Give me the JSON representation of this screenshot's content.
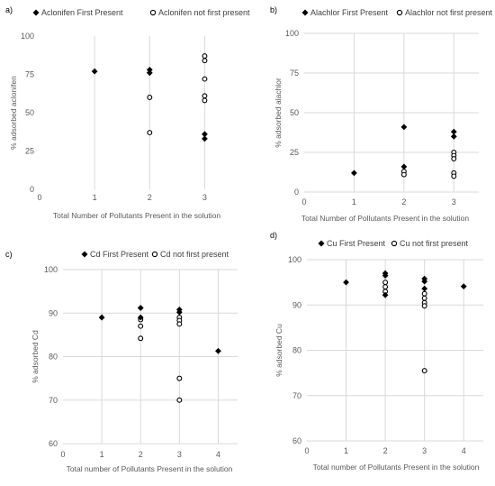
{
  "chart_data": [
    {
      "panel": "a)",
      "type": "scatter",
      "xlabel": "Total Number of Pollutants Present in the solution",
      "ylabel": "% adsorbed aclonifen",
      "xlim": [
        0,
        3.5
      ],
      "ylim": [
        0,
        100
      ],
      "xticks": [
        0,
        1,
        2,
        3
      ],
      "yticks": [
        0,
        25,
        50,
        75,
        100
      ],
      "grid": "vertical",
      "legend": "top-left",
      "series": [
        {
          "name": "Aclonifen First Present",
          "marker": "filled-diamond",
          "points": [
            [
              1,
              77
            ],
            [
              2,
              78
            ],
            [
              2,
              76
            ],
            [
              3,
              36
            ],
            [
              3,
              33
            ]
          ]
        },
        {
          "name": "Aclonifen not first present",
          "marker": "open-circle",
          "points": [
            [
              2,
              60
            ],
            [
              2,
              37
            ],
            [
              3,
              87
            ],
            [
              3,
              84
            ],
            [
              3,
              72
            ],
            [
              3,
              61
            ],
            [
              3,
              58
            ]
          ]
        }
      ]
    },
    {
      "panel": "b)",
      "type": "scatter",
      "xlabel": "Total Number of Pollutants Present in the solution",
      "ylabel": "% adsorbed alachlor",
      "xlim": [
        0,
        3.5
      ],
      "ylim": [
        0,
        100
      ],
      "xticks": [
        0,
        1,
        2,
        3
      ],
      "yticks": [
        0,
        25,
        50,
        75,
        100
      ],
      "grid": "horizontal-and-vertical",
      "legend": "top",
      "series": [
        {
          "name": "Alachlor First Present",
          "marker": "filled-diamond",
          "points": [
            [
              1,
              12
            ],
            [
              2,
              41
            ],
            [
              2,
              16
            ],
            [
              3,
              38
            ],
            [
              3,
              35
            ]
          ]
        },
        {
          "name": "Alachlor not first present",
          "marker": "open-circle",
          "points": [
            [
              2,
              13
            ],
            [
              2,
              11
            ],
            [
              3,
              25
            ],
            [
              3,
              23
            ],
            [
              3,
              21
            ],
            [
              3,
              12
            ],
            [
              3,
              10
            ]
          ]
        }
      ]
    },
    {
      "panel": "c)",
      "type": "scatter",
      "xlabel": "Total number of Pollutants Present in the solution",
      "ylabel": "% adsorbed Cd",
      "xlim": [
        0,
        4.5
      ],
      "ylim": [
        60,
        100
      ],
      "xticks": [
        0,
        1,
        2,
        3,
        4
      ],
      "yticks": [
        60,
        70,
        80,
        90,
        100
      ],
      "grid": "horizontal-and-vertical",
      "legend": "top",
      "series": [
        {
          "name": "Cd First Present",
          "marker": "filled-diamond",
          "points": [
            [
              1,
              89
            ],
            [
              2,
              91.2
            ],
            [
              2,
              89
            ],
            [
              3,
              90.8
            ],
            [
              3,
              90.2
            ],
            [
              4,
              81.3
            ]
          ]
        },
        {
          "name": "Cd not first present",
          "marker": "open-circle",
          "points": [
            [
              2,
              88.5
            ],
            [
              2,
              87
            ],
            [
              2,
              84.2
            ],
            [
              3,
              89
            ],
            [
              3,
              88.3
            ],
            [
              3,
              87.5
            ],
            [
              3,
              75
            ],
            [
              3,
              70
            ]
          ]
        }
      ]
    },
    {
      "panel": "d)",
      "type": "scatter",
      "xlabel": "Total number of Pollutants Present in the solution",
      "ylabel": "% adsorbed Cu",
      "xlim": [
        0,
        4.5
      ],
      "ylim": [
        60,
        100
      ],
      "xticks": [
        0,
        1,
        2,
        3,
        4
      ],
      "yticks": [
        60,
        70,
        80,
        90,
        100
      ],
      "grid": "horizontal-and-vertical",
      "legend": "top",
      "series": [
        {
          "name": "Cu First Present",
          "marker": "filled-diamond",
          "points": [
            [
              1,
              95
            ],
            [
              2,
              97
            ],
            [
              2,
              96.5
            ],
            [
              2,
              92.2
            ],
            [
              3,
              95.8
            ],
            [
              3,
              95.2
            ],
            [
              3,
              93.6
            ],
            [
              4,
              94.1
            ]
          ]
        },
        {
          "name": "Cu not first present",
          "marker": "open-circle",
          "points": [
            [
              2,
              95
            ],
            [
              2,
              94
            ],
            [
              2,
              93
            ],
            [
              3,
              92.5
            ],
            [
              3,
              91.5
            ],
            [
              3,
              90.5
            ],
            [
              3,
              89.8
            ],
            [
              3,
              75.5
            ]
          ]
        }
      ]
    }
  ]
}
